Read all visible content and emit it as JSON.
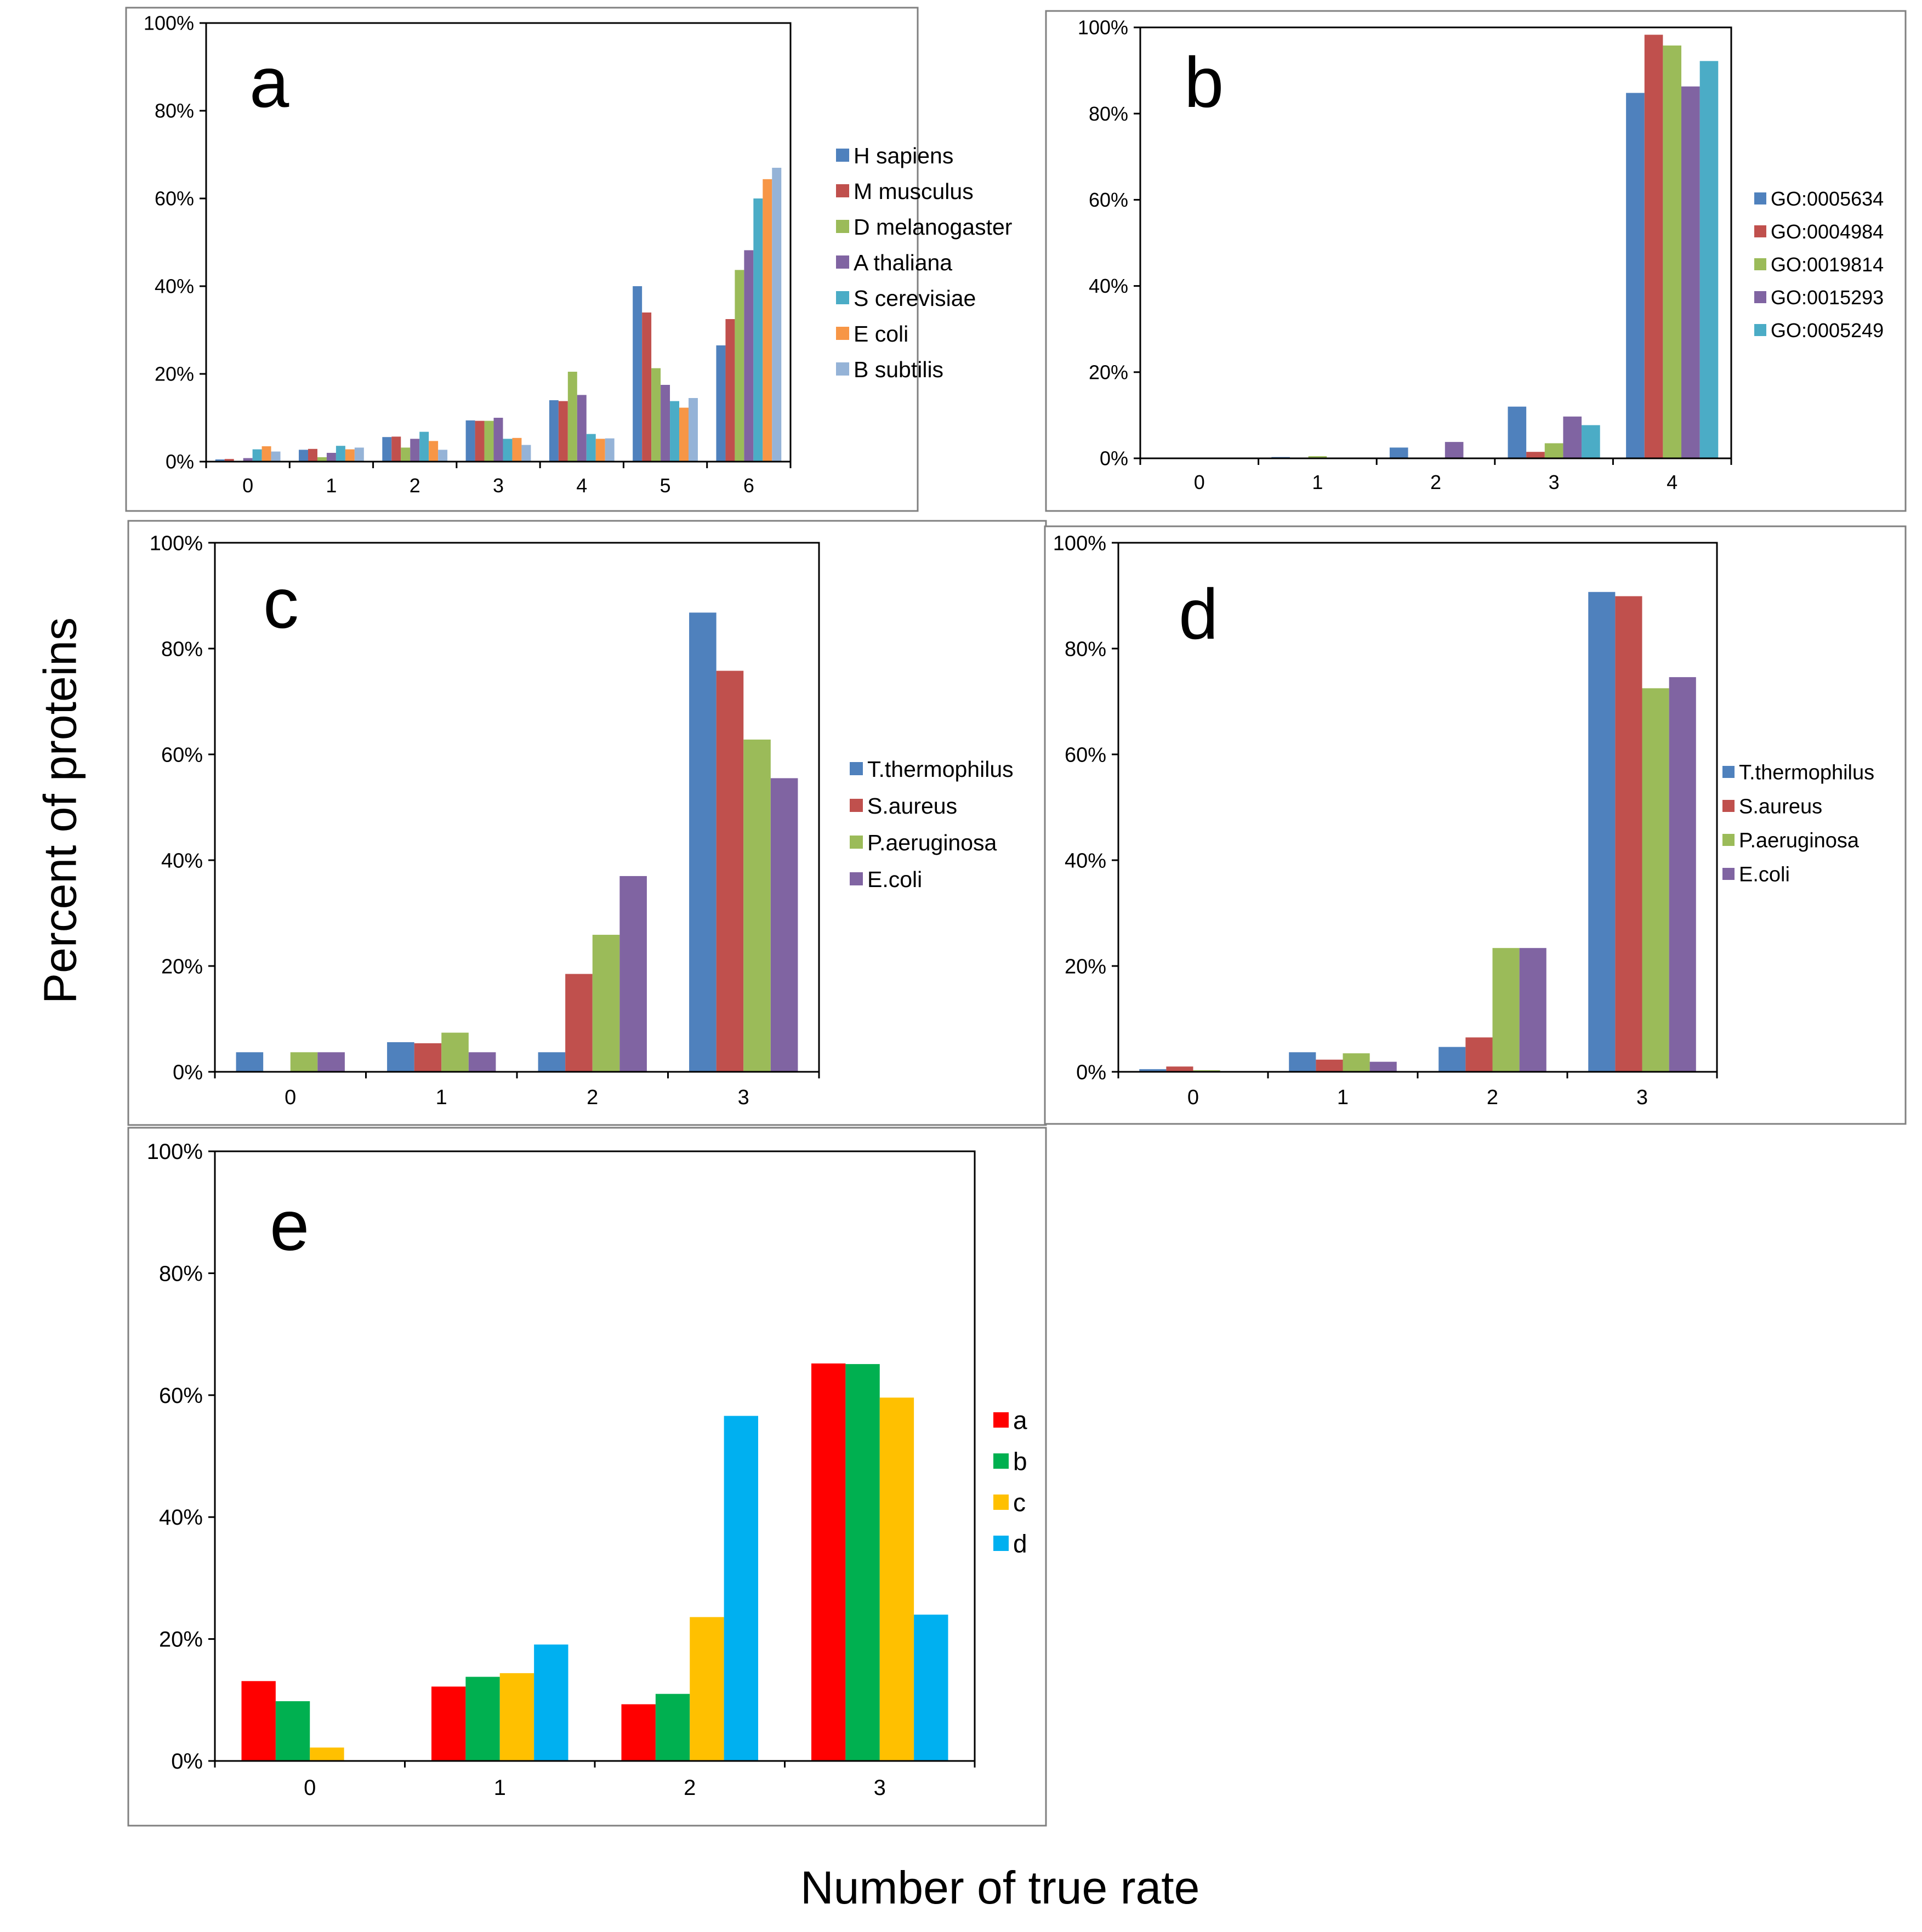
{
  "figure": {
    "ylabel": "Percent of proteins",
    "xlabel": "Number of true rate"
  },
  "chart_data": [
    {
      "panel": "a",
      "type": "bar",
      "categories": [
        "0",
        "1",
        "2",
        "3",
        "4",
        "5",
        "6"
      ],
      "ylim": [
        0,
        100
      ],
      "yticks": [
        "0%",
        "20%",
        "40%",
        "60%",
        "80%",
        "100%"
      ],
      "series": [
        {
          "name": "H sapiens",
          "color": "#4F81BD",
          "values": [
            0.5,
            2.7,
            5.6,
            9.4,
            14,
            40,
            26.5
          ]
        },
        {
          "name": "M musculus",
          "color": "#C0504D",
          "values": [
            0.6,
            2.9,
            5.7,
            9.3,
            13.8,
            34,
            32.5
          ]
        },
        {
          "name": "D melanogaster",
          "color": "#9BBB59",
          "values": [
            0.1,
            1.0,
            3.2,
            9.3,
            20.5,
            21.3,
            43.7
          ]
        },
        {
          "name": "A thaliana",
          "color": "#8064A2",
          "values": [
            0.8,
            2.0,
            5.2,
            10.0,
            15.2,
            17.5,
            48.2
          ]
        },
        {
          "name": "S cerevisiae",
          "color": "#4BACC6",
          "values": [
            2.8,
            3.6,
            6.8,
            5.2,
            6.3,
            13.8,
            60.0
          ]
        },
        {
          "name": "E coli",
          "color": "#F79646",
          "values": [
            3.5,
            2.8,
            4.7,
            5.4,
            5.2,
            12.3,
            64.4
          ]
        },
        {
          "name": "B subtilis",
          "color": "#95B3D7",
          "values": [
            2.3,
            3.2,
            2.7,
            3.8,
            5.3,
            14.5,
            67.0
          ]
        }
      ]
    },
    {
      "panel": "b",
      "type": "bar",
      "categories": [
        "0",
        "1",
        "2",
        "3",
        "4"
      ],
      "ylim": [
        0,
        100
      ],
      "yticks": [
        "0%",
        "20%",
        "40%",
        "60%",
        "80%",
        "100%"
      ],
      "series": [
        {
          "name": "GO:0005634",
          "color": "#4F81BD",
          "values": [
            0,
            0.3,
            2.5,
            12,
            84.8
          ]
        },
        {
          "name": "GO:0004984",
          "color": "#C0504D",
          "values": [
            0,
            0,
            0.1,
            1.5,
            98.3
          ]
        },
        {
          "name": "GO:0019814",
          "color": "#9BBB59",
          "values": [
            0,
            0.5,
            0,
            3.5,
            95.8
          ]
        },
        {
          "name": "GO:0015293",
          "color": "#8064A2",
          "values": [
            0,
            0,
            3.8,
            9.7,
            86.3
          ]
        },
        {
          "name": "GO:0005249",
          "color": "#4BACC6",
          "values": [
            0,
            0,
            0,
            7.7,
            92.2
          ]
        }
      ]
    },
    {
      "panel": "c",
      "type": "bar",
      "categories": [
        "0",
        "1",
        "2",
        "3"
      ],
      "ylim": [
        0,
        100
      ],
      "yticks": [
        "0%",
        "20%",
        "40%",
        "60%",
        "80%",
        "100%"
      ],
      "series": [
        {
          "name": "T.thermophilus",
          "color": "#4F81BD",
          "values": [
            3.7,
            5.6,
            3.7,
            86.8
          ]
        },
        {
          "name": "S.aureus",
          "color": "#C0504D",
          "values": [
            0,
            5.4,
            18.5,
            75.8
          ]
        },
        {
          "name": "P.aeruginosa",
          "color": "#9BBB59",
          "values": [
            3.7,
            7.4,
            25.9,
            62.8
          ]
        },
        {
          "name": "E.coli",
          "color": "#8064A2",
          "values": [
            3.7,
            3.7,
            37.0,
            55.5
          ]
        }
      ]
    },
    {
      "panel": "d",
      "type": "bar",
      "categories": [
        "0",
        "1",
        "2",
        "3"
      ],
      "ylim": [
        0,
        100
      ],
      "yticks": [
        "0%",
        "20%",
        "40%",
        "60%",
        "80%",
        "100%"
      ],
      "series": [
        {
          "name": "T.thermophilus",
          "color": "#4F81BD",
          "values": [
            0.5,
            3.7,
            4.7,
            90.7
          ]
        },
        {
          "name": "S.aureus",
          "color": "#C0504D",
          "values": [
            1.0,
            2.3,
            6.5,
            89.9
          ]
        },
        {
          "name": "P.aeruginosa",
          "color": "#9BBB59",
          "values": [
            0.3,
            3.5,
            23.4,
            72.5
          ]
        },
        {
          "name": "E.coli",
          "color": "#8064A2",
          "values": [
            0,
            1.9,
            23.4,
            74.6
          ]
        }
      ]
    },
    {
      "panel": "e",
      "type": "bar",
      "categories": [
        "0",
        "1",
        "2",
        "3"
      ],
      "ylim": [
        0,
        100
      ],
      "yticks": [
        "0%",
        "20%",
        "40%",
        "60%",
        "80%",
        "100%"
      ],
      "series": [
        {
          "name": "a",
          "color": "#FF0000",
          "values": [
            13.1,
            12.2,
            9.3,
            65.2
          ]
        },
        {
          "name": "b",
          "color": "#00B050",
          "values": [
            9.8,
            13.8,
            11.0,
            65.1
          ]
        },
        {
          "name": "c",
          "color": "#FFC000",
          "values": [
            2.2,
            14.4,
            23.6,
            59.6
          ]
        },
        {
          "name": "d",
          "color": "#00B0F0",
          "values": [
            0,
            19.1,
            56.6,
            24.0
          ]
        }
      ]
    }
  ]
}
